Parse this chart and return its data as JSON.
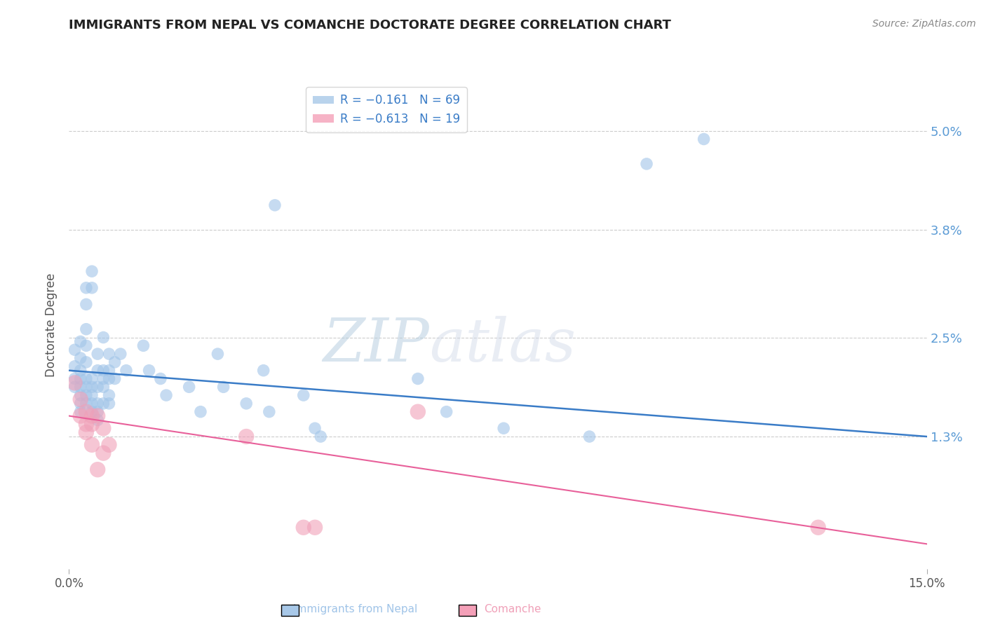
{
  "title": "IMMIGRANTS FROM NEPAL VS COMANCHE DOCTORATE DEGREE CORRELATION CHART",
  "source": "Source: ZipAtlas.com",
  "ylabel": "Doctorate Degree",
  "xlabel_ticks": [
    "0.0%",
    "15.0%"
  ],
  "ytick_labels": [
    "5.0%",
    "3.8%",
    "2.5%",
    "1.3%"
  ],
  "ytick_values": [
    0.05,
    0.038,
    0.025,
    0.013
  ],
  "xlim": [
    0.0,
    0.15
  ],
  "ylim": [
    -0.003,
    0.056
  ],
  "watermark_zip": "ZIP",
  "watermark_atlas": "atlas",
  "legend_entries": [
    {
      "label": "R = −0.161   N = 69",
      "color": "#a8c8e8"
    },
    {
      "label": "R = −0.613   N = 19",
      "color": "#f4a0b8"
    }
  ],
  "nepal_scatter": {
    "color": "#a0c4e8",
    "alpha": 0.6,
    "size": 160,
    "points": [
      [
        0.001,
        0.0235
      ],
      [
        0.001,
        0.0215
      ],
      [
        0.001,
        0.02
      ],
      [
        0.001,
        0.019
      ],
      [
        0.002,
        0.0245
      ],
      [
        0.002,
        0.0225
      ],
      [
        0.002,
        0.021
      ],
      [
        0.002,
        0.02
      ],
      [
        0.002,
        0.019
      ],
      [
        0.002,
        0.018
      ],
      [
        0.002,
        0.017
      ],
      [
        0.002,
        0.016
      ],
      [
        0.003,
        0.031
      ],
      [
        0.003,
        0.029
      ],
      [
        0.003,
        0.026
      ],
      [
        0.003,
        0.024
      ],
      [
        0.003,
        0.022
      ],
      [
        0.003,
        0.02
      ],
      [
        0.003,
        0.019
      ],
      [
        0.003,
        0.018
      ],
      [
        0.003,
        0.017
      ],
      [
        0.004,
        0.033
      ],
      [
        0.004,
        0.031
      ],
      [
        0.004,
        0.02
      ],
      [
        0.004,
        0.019
      ],
      [
        0.004,
        0.018
      ],
      [
        0.004,
        0.017
      ],
      [
        0.004,
        0.016
      ],
      [
        0.005,
        0.023
      ],
      [
        0.005,
        0.021
      ],
      [
        0.005,
        0.019
      ],
      [
        0.005,
        0.017
      ],
      [
        0.005,
        0.016
      ],
      [
        0.005,
        0.015
      ],
      [
        0.006,
        0.025
      ],
      [
        0.006,
        0.021
      ],
      [
        0.006,
        0.02
      ],
      [
        0.006,
        0.019
      ],
      [
        0.006,
        0.017
      ],
      [
        0.007,
        0.023
      ],
      [
        0.007,
        0.021
      ],
      [
        0.007,
        0.02
      ],
      [
        0.007,
        0.018
      ],
      [
        0.007,
        0.017
      ],
      [
        0.008,
        0.022
      ],
      [
        0.008,
        0.02
      ],
      [
        0.009,
        0.023
      ],
      [
        0.01,
        0.021
      ],
      [
        0.013,
        0.024
      ],
      [
        0.014,
        0.021
      ],
      [
        0.016,
        0.02
      ],
      [
        0.017,
        0.018
      ],
      [
        0.021,
        0.019
      ],
      [
        0.023,
        0.016
      ],
      [
        0.026,
        0.023
      ],
      [
        0.027,
        0.019
      ],
      [
        0.031,
        0.017
      ],
      [
        0.034,
        0.021
      ],
      [
        0.035,
        0.016
      ],
      [
        0.041,
        0.018
      ],
      [
        0.043,
        0.014
      ],
      [
        0.044,
        0.013
      ],
      [
        0.061,
        0.02
      ],
      [
        0.066,
        0.016
      ],
      [
        0.076,
        0.014
      ],
      [
        0.091,
        0.013
      ],
      [
        0.101,
        0.046
      ],
      [
        0.111,
        0.049
      ],
      [
        0.036,
        0.041
      ]
    ]
  },
  "comanche_scatter": {
    "color": "#f0a0b8",
    "alpha": 0.6,
    "size": 260,
    "points": [
      [
        0.001,
        0.0195
      ],
      [
        0.002,
        0.0175
      ],
      [
        0.002,
        0.0155
      ],
      [
        0.003,
        0.016
      ],
      [
        0.003,
        0.0145
      ],
      [
        0.003,
        0.0135
      ],
      [
        0.004,
        0.0155
      ],
      [
        0.004,
        0.0145
      ],
      [
        0.004,
        0.012
      ],
      [
        0.005,
        0.0155
      ],
      [
        0.005,
        0.009
      ],
      [
        0.006,
        0.014
      ],
      [
        0.006,
        0.011
      ],
      [
        0.007,
        0.012
      ],
      [
        0.031,
        0.013
      ],
      [
        0.041,
        0.002
      ],
      [
        0.043,
        0.002
      ],
      [
        0.061,
        0.016
      ],
      [
        0.131,
        0.002
      ]
    ]
  },
  "nepal_line": {
    "color": "#3a7cc7",
    "x_start": 0.0,
    "y_start": 0.021,
    "x_end": 0.15,
    "y_end": 0.013
  },
  "comanche_line": {
    "color": "#e8609a",
    "x_start": 0.0,
    "y_start": 0.0155,
    "x_end": 0.15,
    "y_end": 0.0
  },
  "gridline_color": "#cccccc",
  "gridline_style": "--",
  "background_color": "#ffffff",
  "title_color": "#222222",
  "axis_label_color": "#555555",
  "ytick_color": "#5b9bd5",
  "xtick_color": "#555555"
}
